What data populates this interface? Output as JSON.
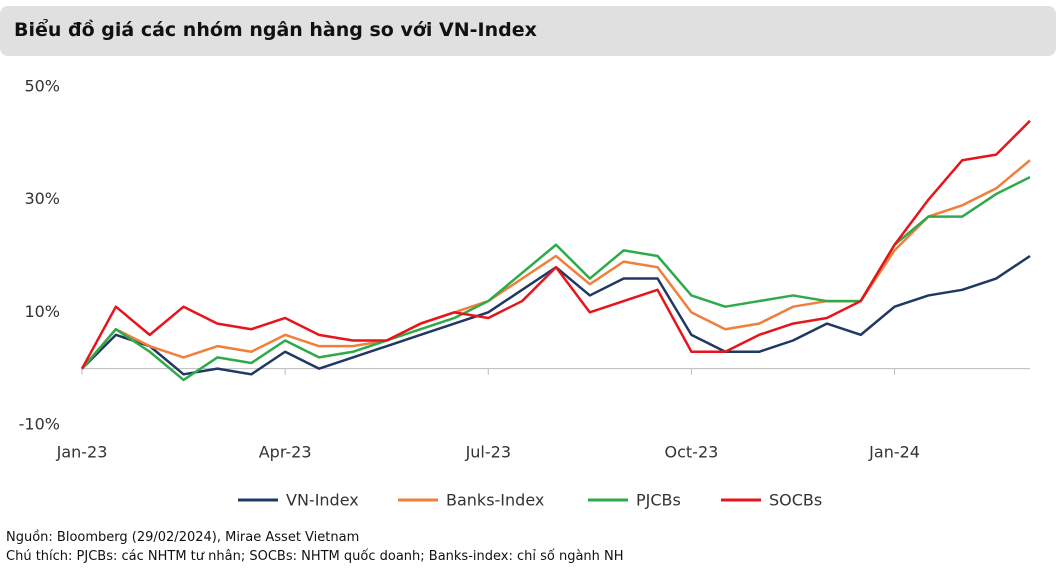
{
  "chart_data": {
    "type": "line",
    "title": "Biểu đồ giá các nhóm ngân hàng so với VN-Index",
    "categories": [
      "Jan-23",
      null,
      null,
      null,
      null,
      null,
      "Apr-23",
      null,
      null,
      null,
      null,
      null,
      "Jul-23",
      null,
      null,
      null,
      null,
      null,
      "Oct-23",
      null,
      null,
      null,
      null,
      null,
      "Jan-24",
      null,
      null,
      null,
      null
    ],
    "series": [
      {
        "name": "VN-Index",
        "color": "#1f3864",
        "values": [
          0,
          6,
          4,
          -1,
          0,
          -1,
          3,
          0,
          2,
          4,
          6,
          8,
          10,
          14,
          18,
          13,
          16,
          16,
          6,
          3,
          3,
          5,
          8,
          6,
          11,
          13,
          14,
          16,
          20
        ]
      },
      {
        "name": "Banks-Index",
        "color": "#f07f3c",
        "values": [
          0,
          7,
          4,
          2,
          4,
          3,
          6,
          4,
          4,
          5,
          8,
          10,
          12,
          16,
          20,
          15,
          19,
          18,
          10,
          7,
          8,
          11,
          12,
          12,
          21,
          27,
          29,
          32,
          37
        ]
      },
      {
        "name": "PJCBs",
        "color": "#2eaa4a",
        "values": [
          0,
          7,
          3,
          -2,
          2,
          1,
          5,
          2,
          3,
          5,
          7,
          9,
          12,
          17,
          22,
          16,
          21,
          20,
          13,
          11,
          12,
          13,
          12,
          12,
          22,
          27,
          27,
          31,
          34
        ]
      },
      {
        "name": "SOCBs",
        "color": "#e8141c",
        "values": [
          0,
          11,
          6,
          11,
          8,
          7,
          9,
          6,
          5,
          5,
          8,
          10,
          9,
          12,
          18,
          10,
          12,
          14,
          3,
          3,
          6,
          8,
          9,
          12,
          22,
          30,
          37,
          38,
          44
        ]
      }
    ],
    "ylim": [
      -10,
      50
    ],
    "yticks": [
      {
        "value": -10,
        "label": "-10%"
      },
      {
        "value": 10,
        "label": "10%"
      },
      {
        "value": 30,
        "label": "30%"
      },
      {
        "value": 50,
        "label": "50%"
      }
    ],
    "legend": "bottom"
  },
  "notes": [
    "Nguồn: Bloomberg (29/02/2024), Mirae Asset Vietnam",
    "Chú thích: PJCBs: các NHTM tư nhân; SOCBs: NHTM quốc doanh; Banks-index: chỉ số ngành NH"
  ]
}
